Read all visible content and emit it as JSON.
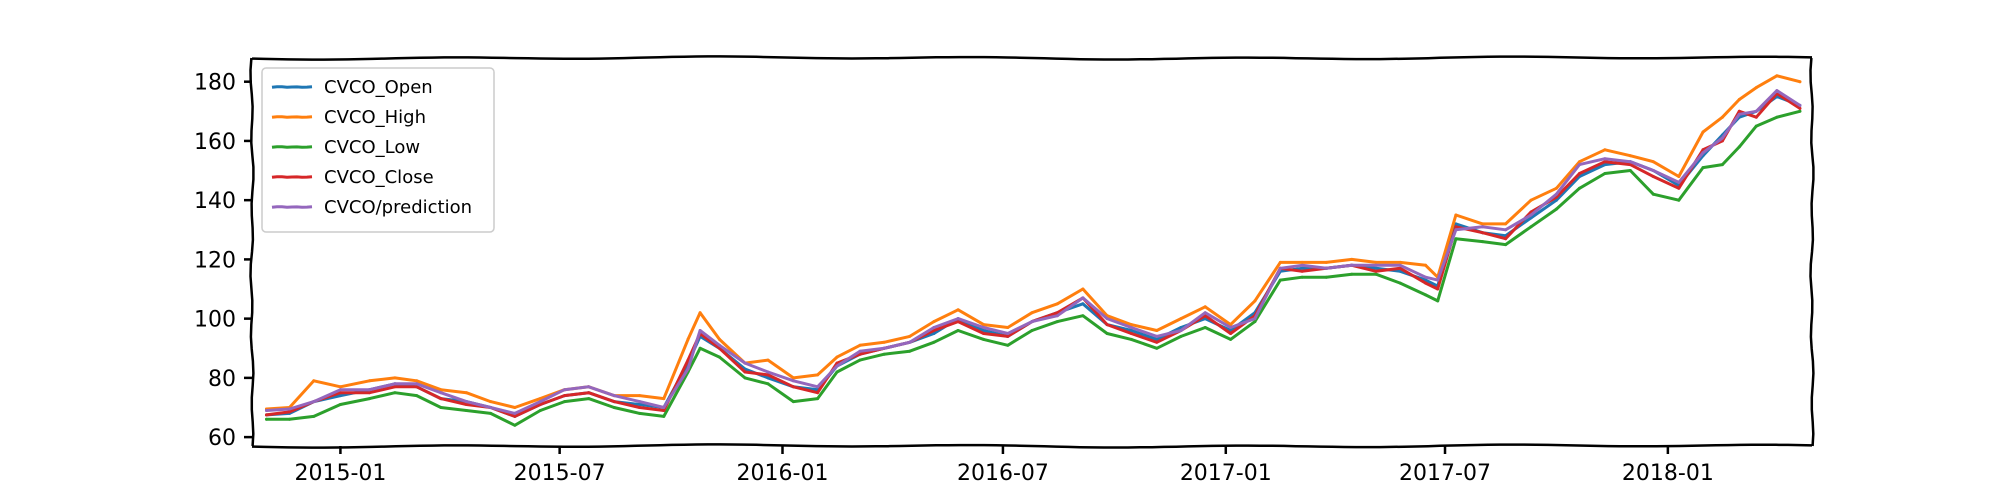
{
  "colors": {
    "open": "#1f77b4",
    "high": "#ff7f0e",
    "low": "#2ca02c",
    "close": "#d62728",
    "prediction": "#9467bd",
    "axis": "#000000",
    "legend_border": "#cccccc"
  },
  "chart_data": {
    "type": "line",
    "title": "",
    "xlabel": "",
    "ylabel": "",
    "x_range": [
      "2014-10-20",
      "2018-04-30"
    ],
    "ylim": [
      57,
      188
    ],
    "grid": false,
    "legend_placement": "top-left",
    "x_ticks": [
      {
        "date": "2015-01-01",
        "label": "2015-01"
      },
      {
        "date": "2015-07-01",
        "label": "2015-07"
      },
      {
        "date": "2016-01-01",
        "label": "2016-01"
      },
      {
        "date": "2016-07-01",
        "label": "2016-07"
      },
      {
        "date": "2017-01-01",
        "label": "2017-01"
      },
      {
        "date": "2017-07-01",
        "label": "2017-07"
      },
      {
        "date": "2018-01-01",
        "label": "2018-01"
      }
    ],
    "y_ticks": [
      {
        "value": 60,
        "label": "60"
      },
      {
        "value": 80,
        "label": "80"
      },
      {
        "value": 100,
        "label": "100"
      },
      {
        "value": 120,
        "label": "120"
      },
      {
        "value": 140,
        "label": "140"
      },
      {
        "value": 160,
        "label": "160"
      },
      {
        "value": 180,
        "label": "180"
      }
    ],
    "x": [
      "2014-11-01",
      "2014-11-20",
      "2014-12-10",
      "2015-01-01",
      "2015-01-25",
      "2015-02-15",
      "2015-03-05",
      "2015-03-25",
      "2015-04-15",
      "2015-05-05",
      "2015-05-25",
      "2015-06-15",
      "2015-07-05",
      "2015-07-25",
      "2015-08-15",
      "2015-09-05",
      "2015-09-25",
      "2015-10-15",
      "2015-10-25",
      "2015-11-10",
      "2015-12-01",
      "2015-12-20",
      "2016-01-10",
      "2016-01-30",
      "2016-02-15",
      "2016-03-05",
      "2016-03-25",
      "2016-04-15",
      "2016-05-05",
      "2016-05-25",
      "2016-06-15",
      "2016-07-05",
      "2016-07-25",
      "2016-08-15",
      "2016-09-05",
      "2016-09-25",
      "2016-10-15",
      "2016-11-05",
      "2016-11-25",
      "2016-12-15",
      "2017-01-05",
      "2017-01-25",
      "2017-02-15",
      "2017-03-05",
      "2017-03-25",
      "2017-04-15",
      "2017-05-05",
      "2017-05-25",
      "2017-06-15",
      "2017-06-25",
      "2017-07-10",
      "2017-08-01",
      "2017-08-20",
      "2017-09-10",
      "2017-10-01",
      "2017-10-20",
      "2017-11-10",
      "2017-12-01",
      "2017-12-20",
      "2018-01-10",
      "2018-01-30",
      "2018-02-15",
      "2018-03-01",
      "2018-03-15",
      "2018-04-01",
      "2018-04-20"
    ],
    "series": [
      {
        "name": "CVCO_Open",
        "key": "open",
        "values": [
          67.5,
          68,
          72,
          74,
          76,
          78,
          77,
          73,
          72,
          70,
          67,
          71,
          74,
          75,
          72,
          71,
          70,
          85,
          94,
          90,
          83,
          80,
          77,
          76,
          84,
          88,
          90,
          92,
          95,
          100,
          96,
          94,
          99,
          102,
          105,
          98,
          96,
          93,
          97,
          100,
          96,
          102,
          116,
          117,
          117,
          118,
          117,
          116,
          113,
          111,
          132,
          129,
          128,
          134,
          140,
          148,
          152,
          153,
          150,
          145,
          155,
          162,
          168,
          170,
          175,
          172
        ]
      },
      {
        "name": "CVCO_High",
        "key": "high",
        "values": [
          69.5,
          70,
          79,
          77,
          79,
          80,
          79,
          76,
          75,
          72,
          70,
          73,
          76,
          77,
          74,
          74,
          73,
          93,
          102,
          93,
          85,
          86,
          80,
          81,
          87,
          91,
          92,
          94,
          99,
          103,
          98,
          97,
          102,
          105,
          110,
          101,
          98,
          96,
          100,
          104,
          98,
          106,
          119,
          119,
          119,
          120,
          119,
          119,
          118,
          114,
          135,
          132,
          132,
          140,
          144,
          153,
          157,
          155,
          153,
          148,
          163,
          168,
          174,
          178,
          182,
          180
        ]
      },
      {
        "name": "CVCO_Low",
        "key": "low",
        "values": [
          66,
          66,
          67,
          71,
          73,
          75,
          74,
          70,
          69,
          68,
          64,
          69,
          72,
          73,
          70,
          68,
          67,
          82,
          90,
          87,
          80,
          78,
          72,
          73,
          82,
          86,
          88,
          89,
          92,
          96,
          93,
          91,
          96,
          99,
          101,
          95,
          93,
          90,
          94,
          97,
          93,
          99,
          113,
          114,
          114,
          115,
          115,
          112,
          108,
          106,
          127,
          126,
          125,
          131,
          137,
          144,
          149,
          150,
          142,
          140,
          151,
          152,
          158,
          165,
          168,
          170
        ]
      },
      {
        "name": "CVCO_Close",
        "key": "close",
        "values": [
          67.5,
          68.5,
          72,
          75,
          75,
          77,
          77,
          73,
          71,
          70,
          67,
          71,
          74,
          75,
          72,
          70,
          69,
          86,
          95,
          90,
          82,
          81,
          77,
          75,
          85,
          88,
          90,
          92,
          96,
          99,
          95,
          94,
          99,
          102,
          107,
          98,
          95,
          92,
          96,
          101,
          95,
          101,
          117,
          116,
          117,
          118,
          116,
          117,
          112,
          110,
          131,
          129,
          127,
          136,
          141,
          149,
          153,
          152,
          148,
          144,
          157,
          160,
          170,
          168,
          176,
          171
        ]
      },
      {
        "name": "CVCO/prediction",
        "key": "prediction",
        "values": [
          69,
          69.5,
          72,
          76,
          76,
          78,
          78,
          75,
          72,
          70,
          68,
          72,
          76,
          77,
          74,
          72,
          70,
          83,
          96,
          91,
          85,
          82,
          79,
          77,
          84,
          89,
          90,
          92,
          97,
          100,
          97,
          95,
          99,
          101,
          107,
          100,
          97,
          94,
          96,
          102,
          97,
          100,
          117,
          118,
          117,
          118,
          118,
          118,
          114,
          113,
          130,
          131,
          130,
          135,
          142,
          152,
          154,
          153,
          150,
          146,
          156,
          161,
          169,
          170,
          177,
          172
        ]
      }
    ]
  }
}
